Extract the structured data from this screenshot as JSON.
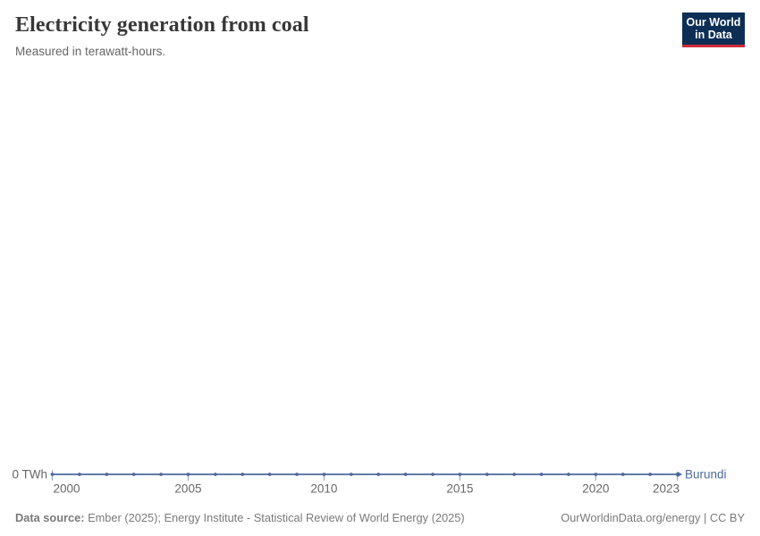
{
  "header": {
    "title": "Electricity generation from coal",
    "subtitle": "Measured in terawatt-hours.",
    "logo": {
      "line1": "Our World",
      "line2": "in Data",
      "bg_color": "#0d2e55",
      "accent_color": "#cb2d3a"
    }
  },
  "chart_data": {
    "type": "line",
    "title": "Electricity generation from coal",
    "subtitle": "Measured in terawatt-hours.",
    "xlabel": "",
    "ylabel": "",
    "unit": "TWh",
    "y_tick_label": "0 TWh",
    "x_range": [
      2000,
      2023
    ],
    "x_ticks": [
      2000,
      2005,
      2010,
      2015,
      2020,
      2023
    ],
    "ylim": [
      0,
      1
    ],
    "grid": false,
    "legend_position": "end-of-line",
    "axis_text_color": "#676767",
    "tick_mark_color": "#9aa9c4",
    "series": [
      {
        "name": "Burundi",
        "color": "#4c6a9c",
        "x": [
          2000,
          2001,
          2002,
          2003,
          2004,
          2005,
          2006,
          2007,
          2008,
          2009,
          2010,
          2011,
          2012,
          2013,
          2014,
          2015,
          2016,
          2017,
          2018,
          2019,
          2020,
          2021,
          2022,
          2023
        ],
        "values": [
          0,
          0,
          0,
          0,
          0,
          0,
          0,
          0,
          0,
          0,
          0,
          0,
          0,
          0,
          0,
          0,
          0,
          0,
          0,
          0,
          0,
          0,
          0,
          0
        ]
      }
    ]
  },
  "footer": {
    "source_label": "Data source:",
    "source_text": "Ember (2025); Energy Institute - Statistical Review of World Energy (2025)",
    "credit": "OurWorldinData.org/energy | CC BY"
  }
}
